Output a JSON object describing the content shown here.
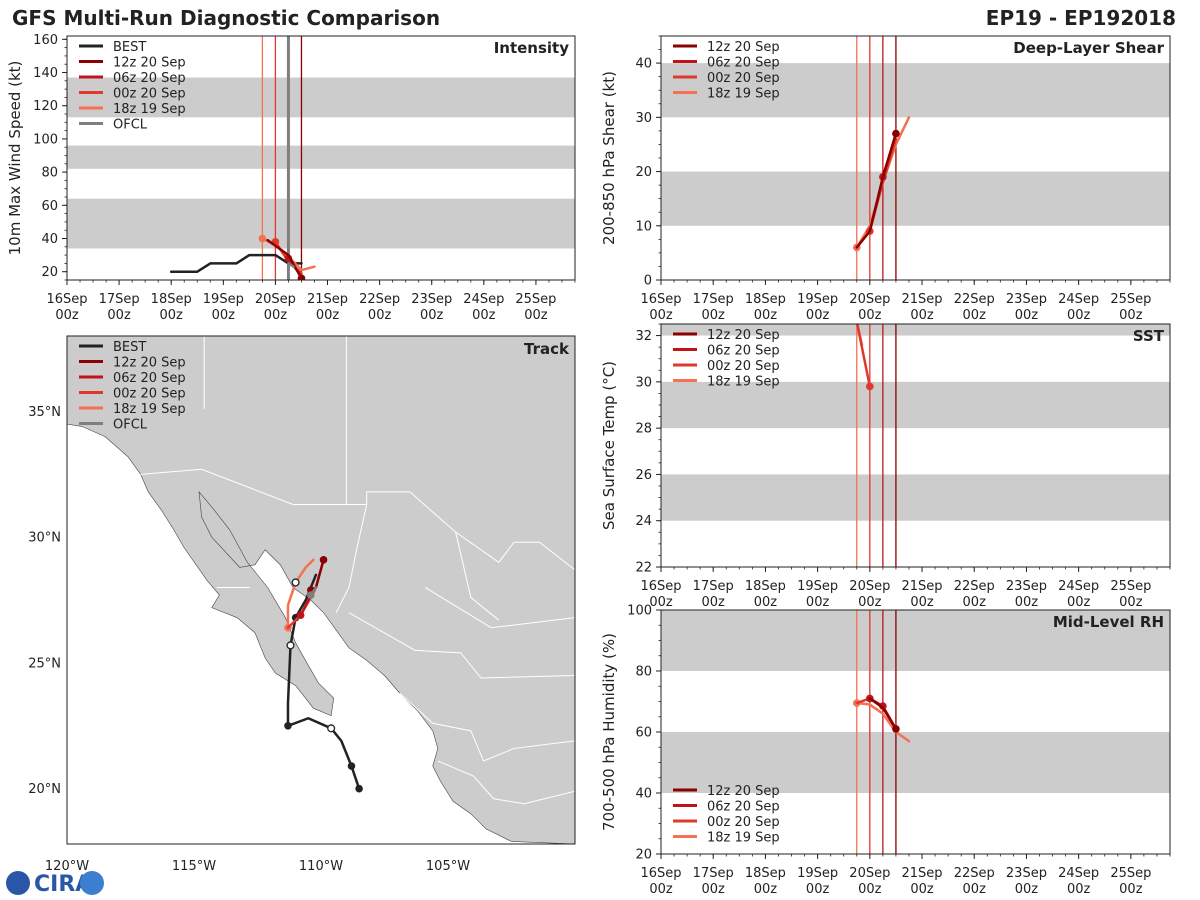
{
  "header": {
    "title": "GFS Multi-Run Diagnostic Comparison",
    "storm_id": "EP19 - EP192018"
  },
  "logo": {
    "text": "CIRA"
  },
  "colors": {
    "BEST": "#222222",
    "12z 20 Sep": "#8b0000",
    "06z 20 Sep": "#c0141a",
    "00z 20 Sep": "#e0382c",
    "18z 19 Sep": "#f47154",
    "OFCL": "#7f7f7f",
    "band": "#cccccc",
    "land": "#cccccc",
    "border": "#ffffff"
  },
  "chart_data": [
    {
      "id": "intensity",
      "type": "line",
      "title": "Intensity",
      "ylabel": "10m Max Wind Speed (kt)",
      "xlim": [
        0,
        9.75
      ],
      "ylim": [
        15,
        162
      ],
      "yticks": [
        20,
        40,
        60,
        80,
        100,
        120,
        140,
        160
      ],
      "xticks": [
        0,
        1,
        2,
        3,
        4,
        5,
        6,
        7,
        8,
        9
      ],
      "xtick_labels": [
        "16Sep\n00z",
        "17Sep\n00z",
        "18Sep\n00z",
        "19Sep\n00z",
        "20Sep\n00z",
        "21Sep\n00z",
        "22Sep\n00z",
        "23Sep\n00z",
        "24Sep\n00z",
        "25Sep\n00z"
      ],
      "bands": [
        [
          34,
          64
        ],
        [
          82,
          96
        ],
        [
          113,
          137
        ]
      ],
      "vlines": [
        {
          "run": "18z 19 Sep",
          "x": 3.75
        },
        {
          "run": "00z 20 Sep",
          "x": 4.0
        },
        {
          "run": "06z 20 Sep",
          "x": 4.25
        },
        {
          "run": "12z 20 Sep",
          "x": 4.5
        },
        {
          "run": "OFCL",
          "x": 4.25
        }
      ],
      "legend_pos": "top-left",
      "legend": [
        "BEST",
        "12z 20 Sep",
        "06z 20 Sep",
        "00z 20 Sep",
        "18z 19 Sep",
        "OFCL"
      ],
      "series": [
        {
          "name": "BEST",
          "x": [
            2.0,
            2.25,
            2.5,
            2.75,
            3.0,
            3.25,
            3.5,
            3.75,
            4.0,
            4.25,
            4.5
          ],
          "y": [
            20,
            20,
            20,
            25,
            25,
            25,
            30,
            30,
            30,
            25,
            25
          ],
          "markers": false
        },
        {
          "name": "18z 19 Sep",
          "x": [
            3.75,
            4.0,
            4.25,
            4.5,
            4.75
          ],
          "y": [
            40,
            36,
            29,
            21,
            23
          ],
          "markers": [
            0
          ]
        },
        {
          "name": "00z 20 Sep",
          "x": [
            4.0,
            4.25,
            4.5
          ],
          "y": [
            38,
            26,
            19
          ],
          "markers": [
            0
          ]
        },
        {
          "name": "06z 20 Sep",
          "x": [
            4.25,
            4.5
          ],
          "y": [
            28,
            17
          ],
          "markers": [
            0
          ]
        },
        {
          "name": "12z 20 Sep",
          "x": [
            3.85,
            4.25,
            4.5
          ],
          "y": [
            39,
            30,
            16
          ],
          "markers": [
            2
          ]
        },
        {
          "name": "OFCL",
          "x": [
            4.25,
            4.35
          ],
          "y": [
            25,
            23
          ],
          "markers": false
        }
      ]
    },
    {
      "id": "shear",
      "type": "line",
      "title": "Deep-Layer Shear",
      "ylabel": "200-850 hPa Shear (kt)",
      "xlim": [
        0,
        9.75
      ],
      "ylim": [
        0,
        45
      ],
      "yticks": [
        0,
        10,
        20,
        30,
        40
      ],
      "xticks": [
        0,
        1,
        2,
        3,
        4,
        5,
        6,
        7,
        8,
        9
      ],
      "xtick_labels": [
        "16Sep\n00z",
        "17Sep\n00z",
        "18Sep\n00z",
        "19Sep\n00z",
        "20Sep\n00z",
        "21Sep\n00z",
        "22Sep\n00z",
        "23Sep\n00z",
        "24Sep\n00z",
        "25Sep\n00z"
      ],
      "bands": [
        [
          10,
          20
        ],
        [
          30,
          40
        ]
      ],
      "vlines": [
        {
          "run": "18z 19 Sep",
          "x": 3.75
        },
        {
          "run": "00z 20 Sep",
          "x": 4.0
        },
        {
          "run": "06z 20 Sep",
          "x": 4.25
        },
        {
          "run": "12z 20 Sep",
          "x": 4.5
        }
      ],
      "legend_pos": "top-left",
      "legend": [
        "12z 20 Sep",
        "06z 20 Sep",
        "00z 20 Sep",
        "18z 19 Sep"
      ],
      "series": [
        {
          "name": "18z 19 Sep",
          "x": [
            3.75,
            4.0,
            4.25,
            4.5,
            4.75
          ],
          "y": [
            6,
            10,
            18,
            25,
            30
          ],
          "markers": [
            0
          ]
        },
        {
          "name": "00z 20 Sep",
          "x": [
            4.0,
            4.25,
            4.5
          ],
          "y": [
            9,
            18,
            26
          ],
          "markers": [
            0
          ]
        },
        {
          "name": "06z 20 Sep",
          "x": [
            4.25,
            4.5
          ],
          "y": [
            19,
            27
          ],
          "markers": [
            0
          ]
        },
        {
          "name": "12z 20 Sep",
          "x": [
            3.75,
            4.0,
            4.25,
            4.5
          ],
          "y": [
            6,
            9,
            19,
            27
          ],
          "markers": [
            3
          ]
        }
      ]
    },
    {
      "id": "sst",
      "type": "line",
      "title": "SST",
      "ylabel": "Sea Surface Temp (°C)",
      "xlim": [
        0,
        9.75
      ],
      "ylim": [
        22,
        32.5
      ],
      "yticks": [
        22,
        24,
        26,
        28,
        30,
        32
      ],
      "xticks": [
        0,
        1,
        2,
        3,
        4,
        5,
        6,
        7,
        8,
        9
      ],
      "xtick_labels": [
        "16Sep\n00z",
        "17Sep\n00z",
        "18Sep\n00z",
        "19Sep\n00z",
        "20Sep\n00z",
        "21Sep\n00z",
        "22Sep\n00z",
        "23Sep\n00z",
        "24Sep\n00z",
        "25Sep\n00z"
      ],
      "bands": [
        [
          24,
          26
        ],
        [
          28,
          30
        ],
        [
          32,
          34
        ]
      ],
      "vlines": [
        {
          "run": "18z 19 Sep",
          "x": 3.75
        },
        {
          "run": "00z 20 Sep",
          "x": 4.0
        },
        {
          "run": "06z 20 Sep",
          "x": 4.25
        },
        {
          "run": "12z 20 Sep",
          "x": 4.5
        }
      ],
      "legend_pos": "top-left",
      "legend": [
        "12z 20 Sep",
        "06z 20 Sep",
        "00z 20 Sep",
        "18z 19 Sep"
      ],
      "series": [
        {
          "name": "18z 19 Sep",
          "x": [
            3.75,
            3.85
          ],
          "y": [
            32.6,
            31.6
          ],
          "markers": false
        },
        {
          "name": "00z 20 Sep",
          "x": [
            3.75,
            4.0
          ],
          "y": [
            32.6,
            29.8
          ],
          "markers": [
            1
          ]
        }
      ]
    },
    {
      "id": "rh",
      "type": "line",
      "title": "Mid-Level RH",
      "ylabel": "700-500 hPa Humidity (%)",
      "xlim": [
        0,
        9.75
      ],
      "ylim": [
        20,
        100
      ],
      "yticks": [
        20,
        40,
        60,
        80,
        100
      ],
      "xticks": [
        0,
        1,
        2,
        3,
        4,
        5,
        6,
        7,
        8,
        9
      ],
      "xtick_labels": [
        "16Sep\n00z",
        "17Sep\n00z",
        "18Sep\n00z",
        "19Sep\n00z",
        "20Sep\n00z",
        "21Sep\n00z",
        "22Sep\n00z",
        "23Sep\n00z",
        "24Sep\n00z",
        "25Sep\n00z"
      ],
      "bands": [
        [
          40,
          60
        ],
        [
          80,
          100
        ]
      ],
      "vlines": [
        {
          "run": "18z 19 Sep",
          "x": 3.75
        },
        {
          "run": "00z 20 Sep",
          "x": 4.0
        },
        {
          "run": "06z 20 Sep",
          "x": 4.25
        },
        {
          "run": "12z 20 Sep",
          "x": 4.5
        }
      ],
      "legend_pos": "bottom-left",
      "legend": [
        "12z 20 Sep",
        "06z 20 Sep",
        "00z 20 Sep",
        "18z 19 Sep"
      ],
      "series": [
        {
          "name": "18z 19 Sep",
          "x": [
            3.75,
            4.0,
            4.25,
            4.5,
            4.75
          ],
          "y": [
            69.5,
            69,
            66,
            60,
            57
          ],
          "markers": [
            0
          ]
        },
        {
          "name": "00z 20 Sep",
          "x": [
            3.75,
            4.0,
            4.25,
            4.5
          ],
          "y": [
            69.5,
            71,
            68,
            61
          ],
          "markers": false
        },
        {
          "name": "06z 20 Sep",
          "x": [
            4.0,
            4.25,
            4.5
          ],
          "y": [
            71,
            68.5,
            61
          ],
          "markers": [
            0,
            1
          ]
        },
        {
          "name": "12z 20 Sep",
          "x": [
            4.0,
            4.25,
            4.5
          ],
          "y": [
            71,
            68,
            61
          ],
          "markers": [
            2
          ]
        }
      ]
    },
    {
      "id": "track",
      "type": "map",
      "title": "Track",
      "xlim": [
        -120.0,
        -100.0
      ],
      "ylim": [
        17.8,
        38.0
      ],
      "xticks": [
        -120,
        -115,
        -110,
        -105
      ],
      "xtick_labels": [
        "120°W",
        "115°W",
        "110°W",
        "105°W"
      ],
      "yticks": [
        20,
        25,
        30,
        35
      ],
      "ytick_labels": [
        "20°N",
        "25°N",
        "30°N",
        "35°N"
      ],
      "legend_pos": "top-left",
      "legend": [
        "BEST",
        "12z 20 Sep",
        "06z 20 Sep",
        "00z 20 Sep",
        "18z 19 Sep",
        "OFCL"
      ],
      "land_polygons": [
        [
          [
            -120.0,
            34.5
          ],
          [
            -119.4,
            34.4
          ],
          [
            -118.5,
            34.0
          ],
          [
            -117.6,
            33.2
          ],
          [
            -117.1,
            32.5
          ],
          [
            -116.8,
            31.8
          ],
          [
            -116.3,
            31.1
          ],
          [
            -115.8,
            30.3
          ],
          [
            -115.4,
            29.6
          ],
          [
            -114.5,
            28.3
          ],
          [
            -114.0,
            27.7
          ],
          [
            -114.3,
            27.2
          ],
          [
            -113.3,
            26.8
          ],
          [
            -112.6,
            26.2
          ],
          [
            -112.2,
            25.2
          ],
          [
            -111.8,
            24.6
          ],
          [
            -111.0,
            24.1
          ],
          [
            -110.3,
            23.2
          ],
          [
            -109.6,
            22.9
          ],
          [
            -109.5,
            23.6
          ],
          [
            -110.1,
            24.2
          ],
          [
            -110.5,
            24.9
          ],
          [
            -111.0,
            25.8
          ],
          [
            -111.4,
            26.8
          ],
          [
            -112.1,
            28.0
          ],
          [
            -112.9,
            29.0
          ],
          [
            -113.6,
            30.3
          ],
          [
            -114.3,
            31.2
          ],
          [
            -114.8,
            31.8
          ],
          [
            -114.7,
            30.8
          ],
          [
            -114.3,
            30.0
          ],
          [
            -113.2,
            28.8
          ],
          [
            -112.6,
            28.9
          ],
          [
            -112.2,
            29.5
          ],
          [
            -111.6,
            28.9
          ],
          [
            -111.1,
            28.0
          ],
          [
            -110.4,
            27.5
          ],
          [
            -109.9,
            27.0
          ],
          [
            -109.4,
            26.3
          ],
          [
            -108.9,
            25.6
          ],
          [
            -108.2,
            25.1
          ],
          [
            -107.5,
            24.5
          ],
          [
            -106.9,
            23.8
          ],
          [
            -106.2,
            23.1
          ],
          [
            -105.6,
            22.3
          ],
          [
            -105.4,
            21.6
          ],
          [
            -105.6,
            20.9
          ],
          [
            -105.3,
            20.3
          ],
          [
            -104.8,
            19.5
          ],
          [
            -104.1,
            19.0
          ],
          [
            -103.5,
            18.4
          ],
          [
            -102.5,
            17.9
          ],
          [
            -100.0,
            17.8
          ],
          [
            -100.0,
            38.0
          ],
          [
            -120.0,
            38.0
          ]
        ]
      ],
      "borders": [
        [
          [
            -117.1,
            32.5
          ],
          [
            -114.7,
            32.7
          ],
          [
            -111.1,
            31.3
          ],
          [
            -108.2,
            31.3
          ],
          [
            -108.2,
            31.8
          ],
          [
            -106.5,
            31.8
          ],
          [
            -104.7,
            30.2
          ],
          [
            -103.0,
            29.0
          ],
          [
            -102.4,
            29.8
          ],
          [
            -101.4,
            29.8
          ],
          [
            -100.0,
            28.7
          ]
        ],
        [
          [
            -114.1,
            28.0
          ],
          [
            -112.8,
            28.0
          ]
        ],
        [
          [
            -109.0,
            38.0
          ],
          [
            -109.0,
            31.3
          ]
        ],
        [
          [
            -114.6,
            35.1
          ],
          [
            -114.6,
            38.0
          ]
        ],
        [
          [
            -105.9,
            28.0
          ],
          [
            -103.3,
            26.4
          ],
          [
            -100.0,
            26.8
          ]
        ],
        [
          [
            -108.9,
            27.0
          ],
          [
            -106.3,
            25.5
          ],
          [
            -104.5,
            25.4
          ],
          [
            -103.7,
            24.4
          ],
          [
            -100.0,
            24.5
          ]
        ],
        [
          [
            -106.9,
            23.8
          ],
          [
            -105.6,
            22.6
          ],
          [
            -104.1,
            22.3
          ],
          [
            -103.6,
            21.1
          ],
          [
            -102.4,
            21.6
          ],
          [
            -100.0,
            21.9
          ]
        ],
        [
          [
            -105.4,
            21.1
          ],
          [
            -104.0,
            20.5
          ],
          [
            -103.2,
            19.6
          ],
          [
            -102.0,
            19.4
          ],
          [
            -100.0,
            19.9
          ]
        ],
        [
          [
            -108.2,
            31.3
          ],
          [
            -108.6,
            29.5
          ],
          [
            -108.9,
            28.0
          ],
          [
            -109.4,
            27.0
          ]
        ],
        [
          [
            -104.7,
            30.2
          ],
          [
            -104.1,
            27.6
          ],
          [
            -103.0,
            26.7
          ]
        ]
      ],
      "series": [
        {
          "name": "BEST",
          "lon": [
            -108.5,
            -108.8,
            -109.2,
            -109.6,
            -110.5,
            -111.3,
            -111.3,
            -111.2,
            -111.0,
            -110.6,
            -110.2
          ],
          "lat": [
            20.0,
            20.9,
            21.9,
            22.4,
            22.8,
            22.5,
            23.4,
            25.7,
            26.8,
            27.5,
            28.5
          ],
          "filled": [
            0,
            1,
            5,
            8
          ],
          "hollow": [
            3,
            7
          ]
        },
        {
          "name": "18z 19 Sep",
          "lon": [
            -111.3,
            -111.3,
            -111.0,
            -110.6,
            -110.3
          ],
          "lat": [
            26.4,
            27.3,
            28.2,
            28.8,
            29.1
          ],
          "filled": [
            0
          ],
          "hollow": [
            2
          ]
        },
        {
          "name": "00z 20 Sep",
          "lon": [
            -111.3,
            -110.8,
            -110.4,
            -110.2
          ],
          "lat": [
            26.4,
            26.9,
            27.6,
            28.0
          ],
          "filled": [],
          "hollow": []
        },
        {
          "name": "06z 20 Sep",
          "lon": [
            -110.8,
            -110.5,
            -110.2
          ],
          "lat": [
            26.9,
            27.5,
            28.0
          ],
          "filled": [
            0
          ],
          "hollow": []
        },
        {
          "name": "12z 20 Sep",
          "lon": [
            -110.4,
            -110.2,
            -109.9
          ],
          "lat": [
            27.9,
            28.0,
            29.1
          ],
          "filled": [
            0,
            2
          ],
          "hollow": []
        },
        {
          "name": "OFCL",
          "lon": [
            -110.4,
            -110.2
          ],
          "lat": [
            27.7,
            28.0
          ],
          "filled": [
            0
          ],
          "hollow": []
        }
      ]
    }
  ]
}
